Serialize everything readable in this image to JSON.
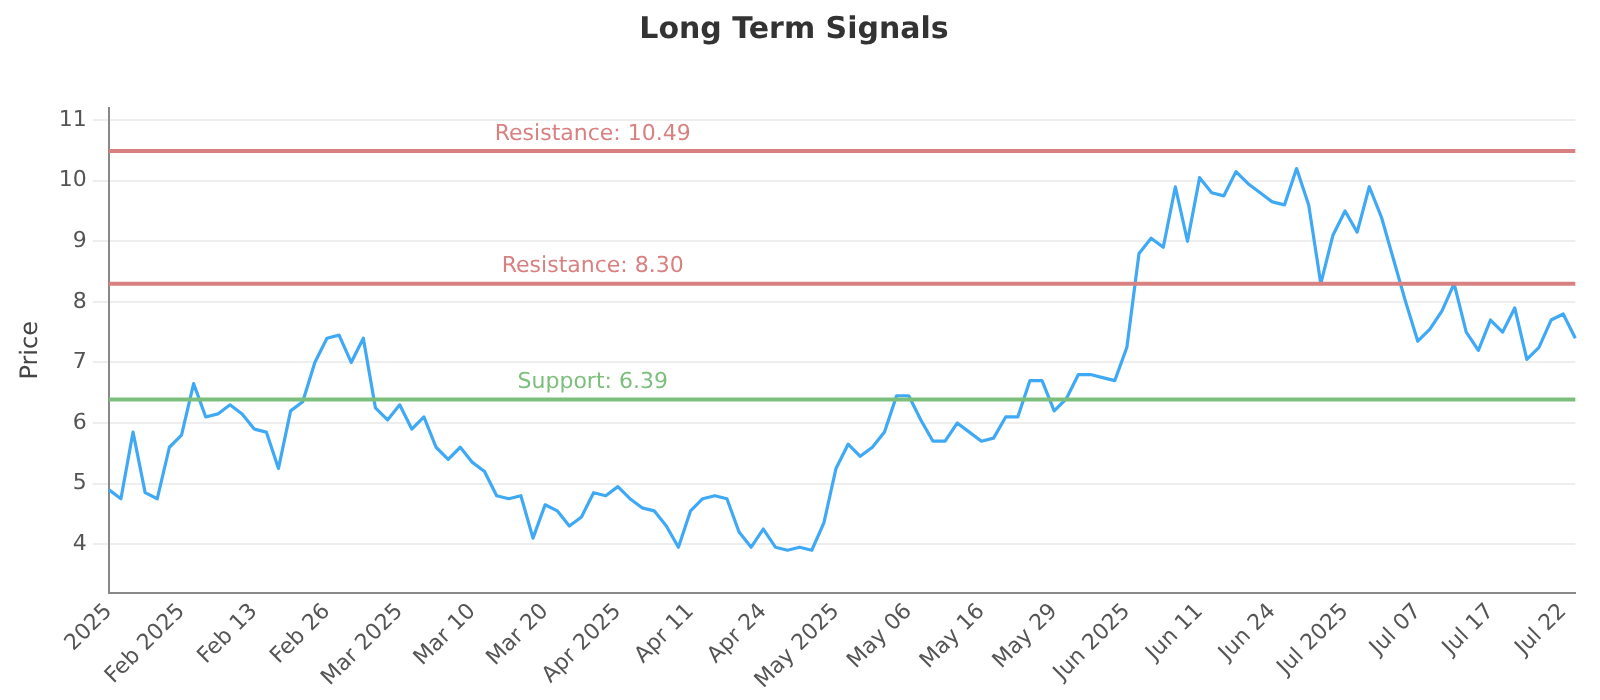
{
  "chart_data": {
    "type": "line",
    "title": "Long Term Signals",
    "ylabel": "Price",
    "categories": [
      "2025",
      null,
      null,
      null,
      null,
      null,
      "Feb 2025",
      null,
      null,
      null,
      null,
      null,
      "Feb 13",
      null,
      null,
      null,
      null,
      null,
      "Feb 26",
      null,
      null,
      null,
      null,
      null,
      "Mar 2025",
      null,
      null,
      null,
      null,
      null,
      "Mar 10",
      null,
      null,
      null,
      null,
      null,
      "Mar 20",
      null,
      null,
      null,
      null,
      null,
      "Apr 2025",
      null,
      null,
      null,
      null,
      null,
      "Apr 11",
      null,
      null,
      null,
      null,
      null,
      "Apr 24",
      null,
      null,
      null,
      null,
      null,
      "May 2025",
      null,
      null,
      null,
      null,
      null,
      "May 06",
      null,
      null,
      null,
      null,
      null,
      "May 16",
      null,
      null,
      null,
      null,
      null,
      "May 29",
      null,
      null,
      null,
      null,
      null,
      "Jun 2025",
      null,
      null,
      null,
      null,
      null,
      "Jun 11",
      null,
      null,
      null,
      null,
      null,
      "Jun 24",
      null,
      null,
      null,
      null,
      null,
      "Jul 2025",
      null,
      null,
      null,
      null,
      null,
      "Jul 07",
      null,
      null,
      null,
      null,
      null,
      "Jul 17",
      null,
      null,
      null,
      null,
      null,
      "Jul 22",
      null
    ],
    "series": [
      {
        "color": "#3fa9f5",
        "values": [
          4.9,
          4.75,
          5.85,
          4.85,
          4.75,
          5.6,
          5.8,
          6.65,
          6.1,
          6.15,
          6.3,
          6.15,
          5.9,
          5.85,
          5.25,
          6.2,
          6.35,
          7.0,
          7.4,
          7.45,
          7.0,
          7.4,
          6.25,
          6.05,
          6.3,
          5.9,
          6.1,
          5.6,
          5.4,
          5.6,
          5.35,
          5.2,
          4.8,
          4.75,
          4.8,
          4.1,
          4.65,
          4.55,
          4.3,
          4.45,
          4.85,
          4.8,
          4.95,
          4.75,
          4.6,
          4.55,
          4.3,
          3.95,
          4.55,
          4.75,
          4.8,
          4.75,
          4.2,
          3.95,
          4.25,
          3.95,
          3.9,
          3.95,
          3.9,
          4.35,
          5.25,
          5.65,
          5.45,
          5.6,
          5.85,
          6.45,
          6.45,
          6.05,
          5.7,
          5.7,
          6.0,
          5.85,
          5.7,
          5.75,
          6.1,
          6.1,
          6.7,
          6.7,
          6.2,
          6.4,
          6.8,
          6.8,
          6.75,
          6.7,
          7.25,
          8.8,
          9.05,
          8.9,
          9.9,
          9.0,
          10.05,
          9.8,
          9.75,
          10.15,
          9.95,
          9.8,
          9.65,
          9.6,
          10.2,
          9.6,
          8.3,
          9.1,
          9.5,
          9.15,
          9.9,
          9.4,
          8.7,
          8.0,
          7.35,
          7.55,
          7.85,
          8.3,
          7.5,
          7.2,
          7.7,
          7.5,
          7.9,
          7.05,
          7.25,
          7.7,
          7.8,
          7.4
        ]
      }
    ],
    "ylim": [
      3.2,
      11.2
    ],
    "yticks": [
      4,
      5,
      6,
      7,
      8,
      9,
      10,
      11
    ],
    "grid": "y",
    "legend": false,
    "marker": "none",
    "line_style": "solid",
    "ref_lines": [
      {
        "axis": "y",
        "value": 10.49,
        "label": "Resistance: 10.49",
        "color": "#d98080"
      },
      {
        "axis": "y",
        "value": 8.3,
        "label": "Resistance: 8.30",
        "color": "#d98080"
      },
      {
        "axis": "y",
        "value": 6.39,
        "label": "Support: 6.39",
        "color": "#7cbf7c"
      }
    ]
  }
}
